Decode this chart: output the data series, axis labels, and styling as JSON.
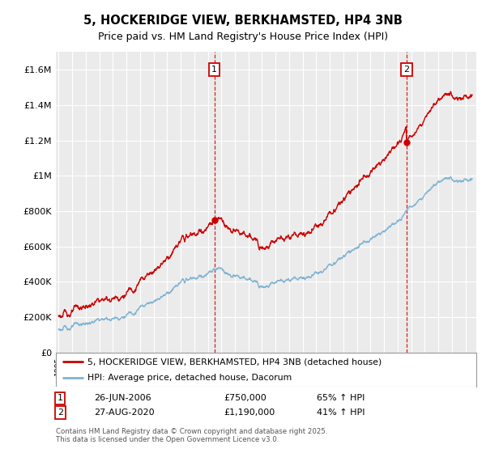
{
  "title": "5, HOCKERIDGE VIEW, BERKHAMSTED, HP4 3NB",
  "subtitle": "Price paid vs. HM Land Registry's House Price Index (HPI)",
  "legend_line1": "5, HOCKERIDGE VIEW, BERKHAMSTED, HP4 3NB (detached house)",
  "legend_line2": "HPI: Average price, detached house, Dacorum",
  "annotation1_date": "26-JUN-2006",
  "annotation1_price": 750000,
  "annotation1_hpi": "65% ↑ HPI",
  "annotation1_year": 2006.49,
  "annotation2_date": "27-AUG-2020",
  "annotation2_price": 1190000,
  "annotation2_hpi": "41% ↑ HPI",
  "annotation2_year": 2020.66,
  "footer1": "Contains HM Land Registry data © Crown copyright and database right 2025.",
  "footer2": "This data is licensed under the Open Government Licence v3.0.",
  "background_color": "#ffffff",
  "plot_bg_color": "#ebebeb",
  "red_line_color": "#cc0000",
  "blue_line_color": "#7fb3d3",
  "grid_color": "#ffffff",
  "dashed_line_color": "#cc0000",
  "ylim_min": 0,
  "ylim_max": 1700000,
  "xlim_min": 1994.8,
  "xlim_max": 2025.8,
  "yticks": [
    0,
    200000,
    400000,
    600000,
    800000,
    1000000,
    1200000,
    1400000,
    1600000
  ]
}
